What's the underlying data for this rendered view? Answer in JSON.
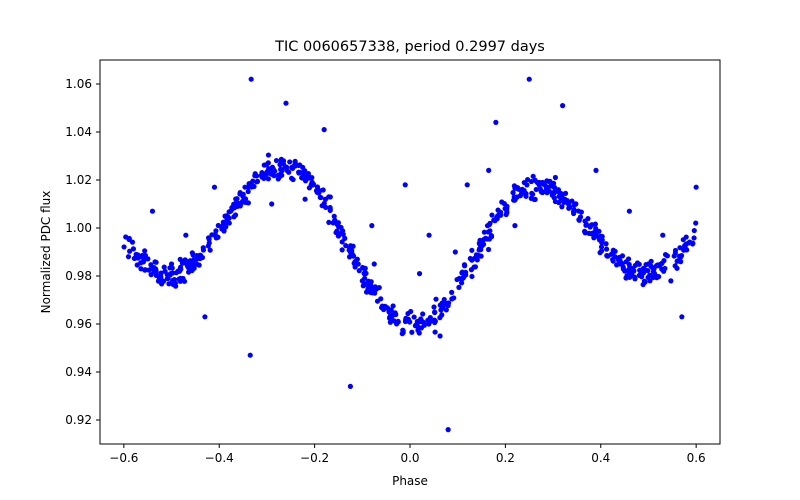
{
  "chart_data": {
    "type": "scatter",
    "title": "TIC 0060657338, period 0.2997 days",
    "xlabel": "Phase",
    "ylabel": "Normalized PDC flux",
    "xlim": [
      -0.65,
      0.65
    ],
    "ylim": [
      0.91,
      1.07
    ],
    "xticks": [
      "−0.6",
      "−0.4",
      "−0.2",
      "0.0",
      "0.2",
      "0.4",
      "0.6"
    ],
    "xtick_values": [
      -0.6,
      -0.4,
      -0.2,
      0.0,
      0.2,
      0.4,
      0.6
    ],
    "yticks": [
      "0.92",
      "0.94",
      "0.96",
      "0.98",
      "1.00",
      "1.02",
      "1.04",
      "1.06"
    ],
    "ytick_values": [
      0.92,
      0.94,
      0.96,
      0.98,
      1.0,
      1.02,
      1.04,
      1.06
    ],
    "grid": false,
    "marker_color": "#0000ff",
    "model": {
      "period": 0.2997,
      "mean": 0.9955,
      "components": [
        {
          "amplitude": 0.0255,
          "phase_shift": 0.25
        },
        {
          "amplitude": 0.0117,
          "phase_shift": 0.06
        }
      ]
    },
    "x_range": [
      -0.6,
      0.6
    ],
    "n_points": 720,
    "scatter_sigma": 0.0025,
    "outliers": [
      {
        "x": -0.333,
        "y": 1.062
      },
      {
        "x": -0.335,
        "y": 0.947
      },
      {
        "x": -0.125,
        "y": 0.934
      },
      {
        "x": 0.08,
        "y": 0.916
      },
      {
        "x": 0.25,
        "y": 1.062
      },
      {
        "x": -0.01,
        "y": 1.018
      },
      {
        "x": 0.12,
        "y": 1.018
      },
      {
        "x": 0.6,
        "y": 1.017
      },
      {
        "x": -0.43,
        "y": 0.963
      },
      {
        "x": 0.57,
        "y": 0.963
      },
      {
        "x": -0.41,
        "y": 1.017
      },
      {
        "x": -0.08,
        "y": 1.001
      },
      {
        "x": 0.22,
        "y": 1.001
      },
      {
        "x": -0.54,
        "y": 1.007
      },
      {
        "x": -0.5,
        "y": 0.985
      },
      {
        "x": -0.47,
        "y": 0.997
      },
      {
        "x": 0.04,
        "y": 0.997
      },
      {
        "x": 0.02,
        "y": 0.981
      },
      {
        "x": 0.5,
        "y": 0.985
      },
      {
        "x": 0.46,
        "y": 1.007
      },
      {
        "x": 0.53,
        "y": 0.997
      },
      {
        "x": -0.26,
        "y": 1.052
      },
      {
        "x": 0.32,
        "y": 1.051
      },
      {
        "x": -0.18,
        "y": 1.041
      },
      {
        "x": 0.18,
        "y": 1.044
      },
      {
        "x": -0.29,
        "y": 1.01
      },
      {
        "x": -0.22,
        "y": 1.012
      },
      {
        "x": 0.39,
        "y": 1.024
      },
      {
        "x": 0.165,
        "y": 1.024
      },
      {
        "x": -0.1,
        "y": 0.978
      },
      {
        "x": -0.075,
        "y": 0.985
      },
      {
        "x": 0.095,
        "y": 0.99
      },
      {
        "x": 0.063,
        "y": 0.955
      }
    ]
  }
}
